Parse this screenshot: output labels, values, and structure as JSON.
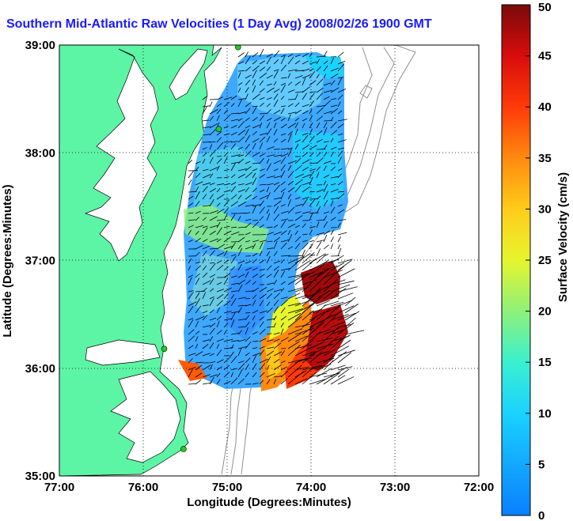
{
  "title": "Southern Mid-Atlantic Raw Velocities (1 Day Avg) 2008/02/26 1900 GMT",
  "chart_data": {
    "type": "heatmap",
    "title": "Southern Mid-Atlantic Raw Velocities (1 Day Avg) 2008/02/26 1900 GMT",
    "xlabel": "Longitude (Degrees:Minutes)",
    "ylabel": "Latitude (Degrees:Minutes)",
    "xlim": [
      -77,
      -72
    ],
    "ylim": [
      35,
      39
    ],
    "x_ticks": [
      {
        "value": -77,
        "label": "77:00"
      },
      {
        "value": -76,
        "label": "76:00"
      },
      {
        "value": -75,
        "label": "75:00"
      },
      {
        "value": -74,
        "label": "74:00"
      },
      {
        "value": -73,
        "label": "73:00"
      },
      {
        "value": -72,
        "label": "72:00"
      }
    ],
    "y_ticks": [
      {
        "value": 35,
        "label": "35:00"
      },
      {
        "value": 36,
        "label": "36:00"
      },
      {
        "value": 37,
        "label": "37:00"
      },
      {
        "value": 38,
        "label": "38:00"
      },
      {
        "value": 39,
        "label": "39:00"
      }
    ],
    "grid": true,
    "colorbar": {
      "label": "Surface Velocity (cm/s)",
      "range": [
        0,
        50
      ],
      "ticks": [
        0,
        5,
        10,
        15,
        20,
        25,
        30,
        35,
        40,
        45,
        50
      ]
    },
    "land_color": "#5cf5a5",
    "coast_color": "#000000",
    "bathymetry_color": "#909090",
    "station_color": "#22cc22",
    "stations": [
      {
        "lon": -74.87,
        "lat": 38.98
      },
      {
        "lon": -75.1,
        "lat": 38.22
      },
      {
        "lon": -75.75,
        "lat": 36.18
      },
      {
        "lon": -75.52,
        "lat": 35.25
      }
    ]
  }
}
